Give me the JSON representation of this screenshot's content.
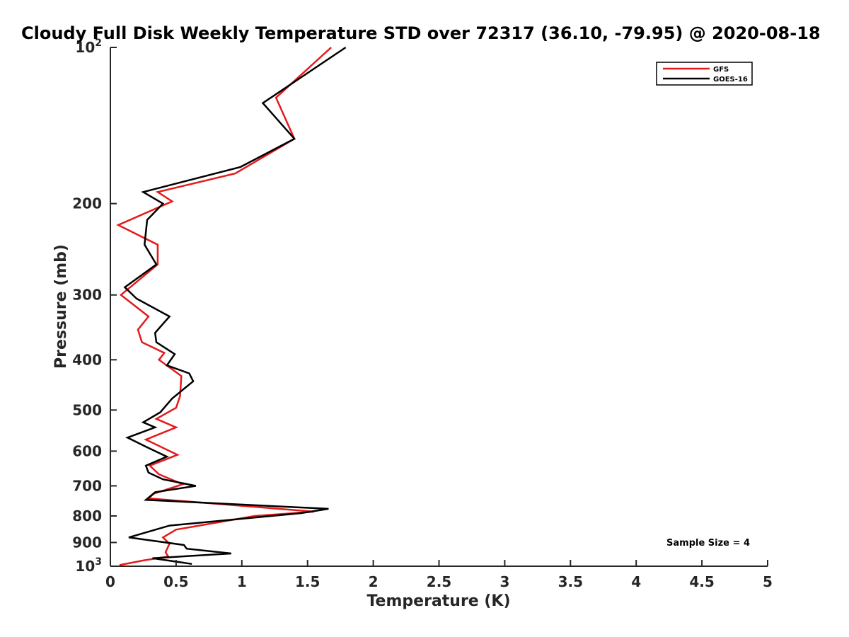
{
  "chart_data": {
    "type": "line",
    "title": "Cloudy Full Disk Weekly Temperature STD over 72317 (36.10, -79.95) @ 2020-08-18",
    "xlabel": "Temperature (K)",
    "ylabel": "Pressure (mb)",
    "xlim": [
      0,
      5
    ],
    "ylim": [
      1000,
      100
    ],
    "y_scale": "log",
    "x_ticks": [
      "0",
      "0.5",
      "1",
      "1.5",
      "2",
      "2.5",
      "3",
      "3.5",
      "4",
      "4.5",
      "5"
    ],
    "y_ticks": [
      {
        "value": 100,
        "base": "10",
        "exp": "2"
      },
      {
        "value": 200,
        "label": "200"
      },
      {
        "value": 300,
        "label": "300"
      },
      {
        "value": 400,
        "label": "400"
      },
      {
        "value": 500,
        "label": "500"
      },
      {
        "value": 600,
        "label": "600"
      },
      {
        "value": 700,
        "label": "700"
      },
      {
        "value": 800,
        "label": "800"
      },
      {
        "value": 900,
        "label": "900"
      },
      {
        "value": 1000,
        "base": "10",
        "exp": "3"
      }
    ],
    "legend_position": "top-right",
    "grid": false,
    "annotation": "Sample Size = 4",
    "series": [
      {
        "name": "GFS",
        "color": "#e41a1c",
        "points": [
          [
            1.68,
            100
          ],
          [
            1.26,
            125
          ],
          [
            1.4,
            150
          ],
          [
            0.95,
            175
          ],
          [
            0.36,
            190
          ],
          [
            0.47,
            198
          ],
          [
            0.06,
            220
          ],
          [
            0.36,
            240
          ],
          [
            0.36,
            262
          ],
          [
            0.08,
            300
          ],
          [
            0.29,
            330
          ],
          [
            0.21,
            350
          ],
          [
            0.24,
            370
          ],
          [
            0.41,
            388
          ],
          [
            0.37,
            400
          ],
          [
            0.54,
            430
          ],
          [
            0.53,
            470
          ],
          [
            0.5,
            495
          ],
          [
            0.35,
            520
          ],
          [
            0.5,
            540
          ],
          [
            0.27,
            570
          ],
          [
            0.51,
            610
          ],
          [
            0.3,
            640
          ],
          [
            0.37,
            665
          ],
          [
            0.55,
            695
          ],
          [
            0.33,
            725
          ],
          [
            0.29,
            740
          ],
          [
            1.55,
            785
          ],
          [
            1.1,
            800
          ],
          [
            0.5,
            850
          ],
          [
            0.4,
            880
          ],
          [
            0.45,
            905
          ],
          [
            0.42,
            940
          ],
          [
            0.44,
            958
          ],
          [
            0.25,
            975
          ],
          [
            0.07,
            995
          ]
        ]
      },
      {
        "name": "GOES-16",
        "color": "#000000",
        "points": [
          [
            1.79,
            100
          ],
          [
            1.16,
            128
          ],
          [
            1.4,
            150
          ],
          [
            0.99,
            170
          ],
          [
            0.25,
            190
          ],
          [
            0.4,
            200
          ],
          [
            0.28,
            215
          ],
          [
            0.26,
            240
          ],
          [
            0.35,
            262
          ],
          [
            0.11,
            290
          ],
          [
            0.2,
            305
          ],
          [
            0.45,
            330
          ],
          [
            0.34,
            355
          ],
          [
            0.35,
            370
          ],
          [
            0.49,
            390
          ],
          [
            0.43,
            410
          ],
          [
            0.6,
            425
          ],
          [
            0.63,
            440
          ],
          [
            0.47,
            475
          ],
          [
            0.38,
            505
          ],
          [
            0.25,
            528
          ],
          [
            0.34,
            540
          ],
          [
            0.13,
            565
          ],
          [
            0.28,
            590
          ],
          [
            0.43,
            615
          ],
          [
            0.27,
            640
          ],
          [
            0.29,
            660
          ],
          [
            0.4,
            680
          ],
          [
            0.65,
            700
          ],
          [
            0.34,
            720
          ],
          [
            0.27,
            745
          ],
          [
            1.66,
            775
          ],
          [
            1.45,
            790
          ],
          [
            0.45,
            835
          ],
          [
            0.14,
            880
          ],
          [
            0.56,
            910
          ],
          [
            0.58,
            925
          ],
          [
            0.92,
            945
          ],
          [
            0.32,
            965
          ],
          [
            0.62,
            990
          ]
        ]
      }
    ]
  }
}
